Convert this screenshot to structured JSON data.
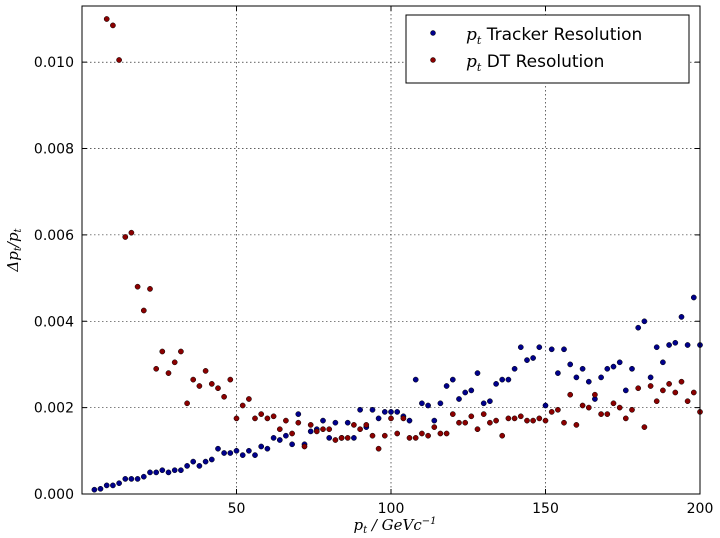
{
  "chart_data": {
    "type": "scatter",
    "xlabel": "p_t / GeVc^-1",
    "ylabel": "Δp_t/p_t",
    "xlim": [
      0,
      200
    ],
    "ylim": [
      0,
      0.0113
    ],
    "x_ticks": [
      "50",
      "100",
      "150",
      "200"
    ],
    "y_ticks": [
      "0.000",
      "0.002",
      "0.004",
      "0.006",
      "0.008",
      "0.010"
    ],
    "grid": true,
    "legend_position": "top-right",
    "series": [
      {
        "name": "p_t Tracker Resolution",
        "color": "#00008b",
        "points": [
          [
            4,
            0.0001
          ],
          [
            6,
            0.00012
          ],
          [
            8,
            0.0002
          ],
          [
            10,
            0.0002
          ],
          [
            12,
            0.00025
          ],
          [
            14,
            0.00035
          ],
          [
            16,
            0.00035
          ],
          [
            18,
            0.00035
          ],
          [
            20,
            0.0004
          ],
          [
            22,
            0.0005
          ],
          [
            24,
            0.0005
          ],
          [
            26,
            0.00055
          ],
          [
            28,
            0.0005
          ],
          [
            30,
            0.00055
          ],
          [
            32,
            0.00055
          ],
          [
            34,
            0.00065
          ],
          [
            36,
            0.00075
          ],
          [
            38,
            0.00065
          ],
          [
            40,
            0.00075
          ],
          [
            42,
            0.0008
          ],
          [
            44,
            0.00105
          ],
          [
            46,
            0.00095
          ],
          [
            48,
            0.00095
          ],
          [
            50,
            0.001
          ],
          [
            52,
            0.0009
          ],
          [
            54,
            0.001
          ],
          [
            56,
            0.0009
          ],
          [
            58,
            0.0011
          ],
          [
            60,
            0.00105
          ],
          [
            62,
            0.0013
          ],
          [
            64,
            0.00125
          ],
          [
            66,
            0.00135
          ],
          [
            68,
            0.00115
          ],
          [
            70,
            0.00185
          ],
          [
            72,
            0.00115
          ],
          [
            74,
            0.00145
          ],
          [
            76,
            0.0015
          ],
          [
            78,
            0.0017
          ],
          [
            80,
            0.0013
          ],
          [
            82,
            0.00165
          ],
          [
            84,
            0.0013
          ],
          [
            86,
            0.00165
          ],
          [
            88,
            0.0013
          ],
          [
            90,
            0.00195
          ],
          [
            92,
            0.00155
          ],
          [
            94,
            0.00195
          ],
          [
            96,
            0.00175
          ],
          [
            98,
            0.0019
          ],
          [
            100,
            0.0019
          ],
          [
            102,
            0.0019
          ],
          [
            104,
            0.0018
          ],
          [
            106,
            0.0017
          ],
          [
            108,
            0.00265
          ],
          [
            110,
            0.0021
          ],
          [
            112,
            0.00205
          ],
          [
            114,
            0.0017
          ],
          [
            116,
            0.0021
          ],
          [
            118,
            0.0025
          ],
          [
            120,
            0.00265
          ],
          [
            122,
            0.0022
          ],
          [
            124,
            0.00235
          ],
          [
            126,
            0.0024
          ],
          [
            128,
            0.0028
          ],
          [
            130,
            0.0021
          ],
          [
            132,
            0.00215
          ],
          [
            134,
            0.00255
          ],
          [
            136,
            0.00265
          ],
          [
            138,
            0.00265
          ],
          [
            140,
            0.0029
          ],
          [
            142,
            0.0034
          ],
          [
            144,
            0.0031
          ],
          [
            146,
            0.00315
          ],
          [
            148,
            0.0034
          ],
          [
            150,
            0.00205
          ],
          [
            152,
            0.00335
          ],
          [
            154,
            0.0028
          ],
          [
            156,
            0.00335
          ],
          [
            158,
            0.003
          ],
          [
            160,
            0.0027
          ],
          [
            162,
            0.0029
          ],
          [
            164,
            0.0026
          ],
          [
            166,
            0.0022
          ],
          [
            168,
            0.0027
          ],
          [
            170,
            0.0029
          ],
          [
            172,
            0.00295
          ],
          [
            174,
            0.00305
          ],
          [
            176,
            0.0024
          ],
          [
            178,
            0.0029
          ],
          [
            180,
            0.00385
          ],
          [
            182,
            0.004
          ],
          [
            184,
            0.0027
          ],
          [
            186,
            0.0034
          ],
          [
            188,
            0.00305
          ],
          [
            190,
            0.00345
          ],
          [
            192,
            0.0035
          ],
          [
            194,
            0.0041
          ],
          [
            196,
            0.00345
          ],
          [
            198,
            0.00455
          ],
          [
            200,
            0.00345
          ]
        ]
      },
      {
        "name": "p_t DT Resolution",
        "color": "#8b0000",
        "points": [
          [
            8,
            0.011
          ],
          [
            10,
            0.01085
          ],
          [
            12,
            0.01005
          ],
          [
            14,
            0.00595
          ],
          [
            16,
            0.00605
          ],
          [
            18,
            0.0048
          ],
          [
            20,
            0.00425
          ],
          [
            22,
            0.00475
          ],
          [
            24,
            0.0029
          ],
          [
            26,
            0.0033
          ],
          [
            28,
            0.0028
          ],
          [
            30,
            0.00305
          ],
          [
            32,
            0.0033
          ],
          [
            34,
            0.0021
          ],
          [
            36,
            0.00265
          ],
          [
            38,
            0.0025
          ],
          [
            40,
            0.00285
          ],
          [
            42,
            0.00255
          ],
          [
            44,
            0.00245
          ],
          [
            46,
            0.00225
          ],
          [
            48,
            0.00265
          ],
          [
            50,
            0.00175
          ],
          [
            52,
            0.00205
          ],
          [
            54,
            0.0022
          ],
          [
            56,
            0.00175
          ],
          [
            58,
            0.00185
          ],
          [
            60,
            0.00175
          ],
          [
            62,
            0.0018
          ],
          [
            64,
            0.0015
          ],
          [
            66,
            0.0017
          ],
          [
            68,
            0.0014
          ],
          [
            70,
            0.00165
          ],
          [
            72,
            0.0011
          ],
          [
            74,
            0.0016
          ],
          [
            76,
            0.00145
          ],
          [
            78,
            0.0015
          ],
          [
            80,
            0.0015
          ],
          [
            82,
            0.00125
          ],
          [
            84,
            0.0013
          ],
          [
            86,
            0.0013
          ],
          [
            88,
            0.0016
          ],
          [
            90,
            0.0015
          ],
          [
            92,
            0.0016
          ],
          [
            94,
            0.00135
          ],
          [
            96,
            0.00105
          ],
          [
            98,
            0.00135
          ],
          [
            100,
            0.00175
          ],
          [
            102,
            0.0014
          ],
          [
            104,
            0.00175
          ],
          [
            106,
            0.0013
          ],
          [
            108,
            0.0013
          ],
          [
            110,
            0.0014
          ],
          [
            112,
            0.00135
          ],
          [
            114,
            0.00155
          ],
          [
            116,
            0.0014
          ],
          [
            118,
            0.0014
          ],
          [
            120,
            0.00185
          ],
          [
            122,
            0.00165
          ],
          [
            124,
            0.00165
          ],
          [
            126,
            0.0018
          ],
          [
            128,
            0.0015
          ],
          [
            130,
            0.00185
          ],
          [
            132,
            0.00165
          ],
          [
            134,
            0.0017
          ],
          [
            136,
            0.00135
          ],
          [
            138,
            0.00175
          ],
          [
            140,
            0.00175
          ],
          [
            142,
            0.0018
          ],
          [
            144,
            0.0017
          ],
          [
            146,
            0.0017
          ],
          [
            148,
            0.00175
          ],
          [
            150,
            0.0017
          ],
          [
            152,
            0.0019
          ],
          [
            154,
            0.00195
          ],
          [
            156,
            0.00165
          ],
          [
            158,
            0.0023
          ],
          [
            160,
            0.0016
          ],
          [
            162,
            0.00205
          ],
          [
            164,
            0.002
          ],
          [
            166,
            0.0023
          ],
          [
            168,
            0.00185
          ],
          [
            170,
            0.00185
          ],
          [
            172,
            0.0021
          ],
          [
            174,
            0.002
          ],
          [
            176,
            0.00175
          ],
          [
            178,
            0.00195
          ],
          [
            180,
            0.00245
          ],
          [
            182,
            0.00155
          ],
          [
            184,
            0.0025
          ],
          [
            186,
            0.00215
          ],
          [
            188,
            0.0024
          ],
          [
            190,
            0.00255
          ],
          [
            192,
            0.00235
          ],
          [
            194,
            0.0026
          ],
          [
            196,
            0.00215
          ],
          [
            198,
            0.00235
          ],
          [
            200,
            0.0019
          ]
        ]
      }
    ]
  }
}
